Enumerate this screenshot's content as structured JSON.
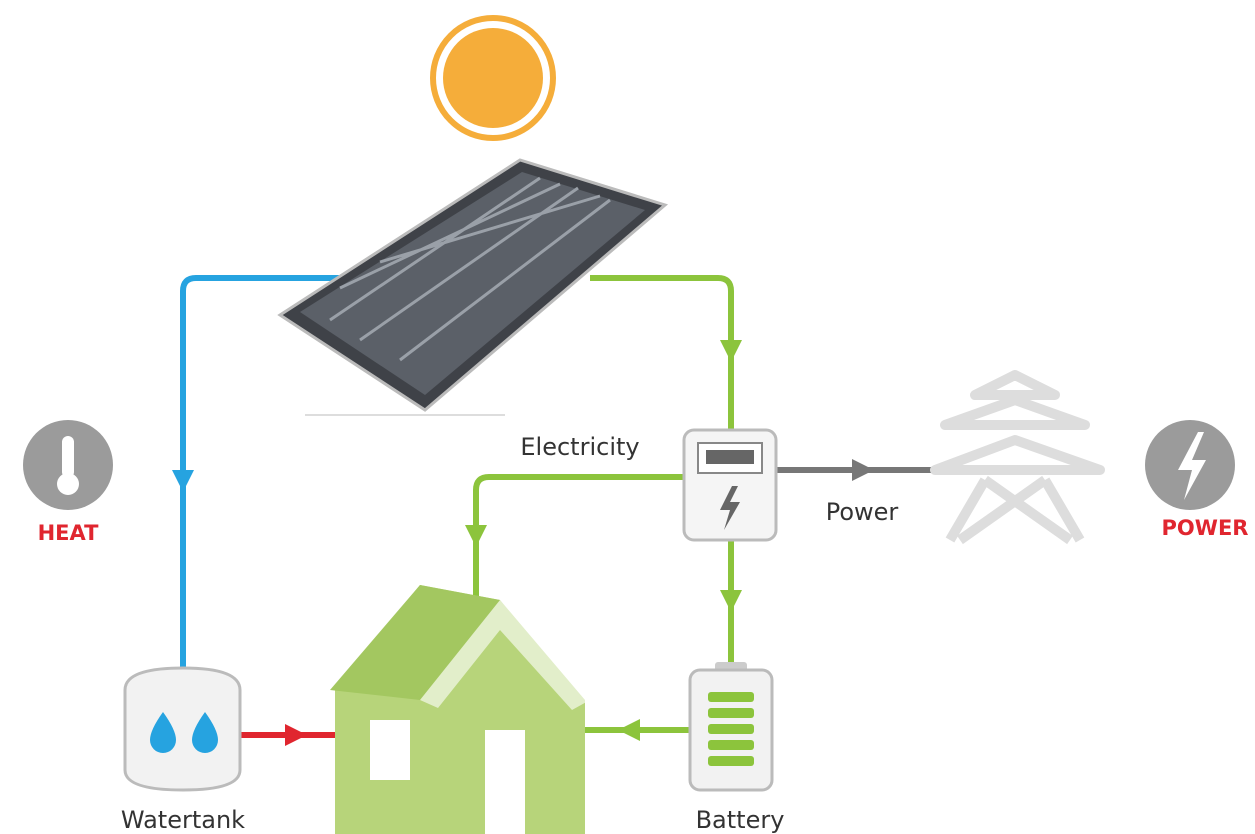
{
  "labels": {
    "electricity": "Electricity",
    "power_flow": "Power",
    "heat": "HEAT",
    "power": "POWER",
    "watertank": "Watertank",
    "battery": "Battery"
  }
}
